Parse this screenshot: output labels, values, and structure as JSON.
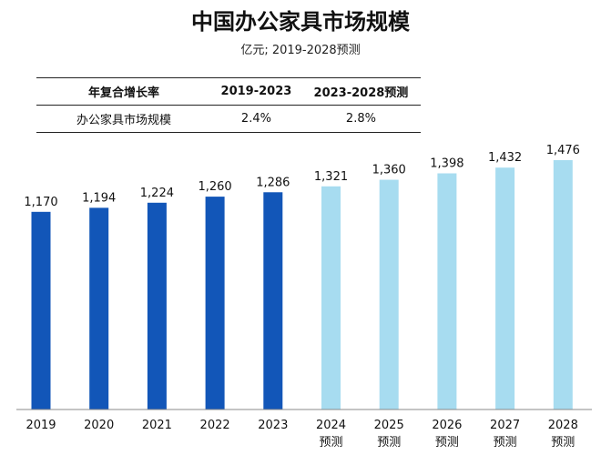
{
  "title": "中国办公家具市场规模",
  "subtitle": "亿元; 2019-2028预测",
  "cagr_table": {
    "headers": [
      "年复合增长率",
      "2019-2023",
      "2023-2028预测"
    ],
    "row": [
      "办公家具市场规模",
      "2.4%",
      "2.8%"
    ]
  },
  "chart_data": {
    "type": "bar",
    "categories": [
      "2019",
      "2020",
      "2021",
      "2022",
      "2023",
      "2024",
      "2025",
      "2026",
      "2027",
      "2028"
    ],
    "forecast_label": "预测",
    "values": [
      1170,
      1194,
      1224,
      1260,
      1286,
      1321,
      1360,
      1398,
      1432,
      1476
    ],
    "value_labels": [
      "1,170",
      "1,194",
      "1,224",
      "1,260",
      "1,286",
      "1,321",
      "1,360",
      "1,398",
      "1,432",
      "1,476"
    ],
    "forecast": [
      false,
      false,
      false,
      false,
      false,
      true,
      true,
      true,
      true,
      true
    ],
    "colors": {
      "actual": "#1256b8",
      "forecast": "#a7dcf0"
    },
    "ylim": [
      0,
      1500
    ],
    "xlabel": "",
    "ylabel": ""
  }
}
